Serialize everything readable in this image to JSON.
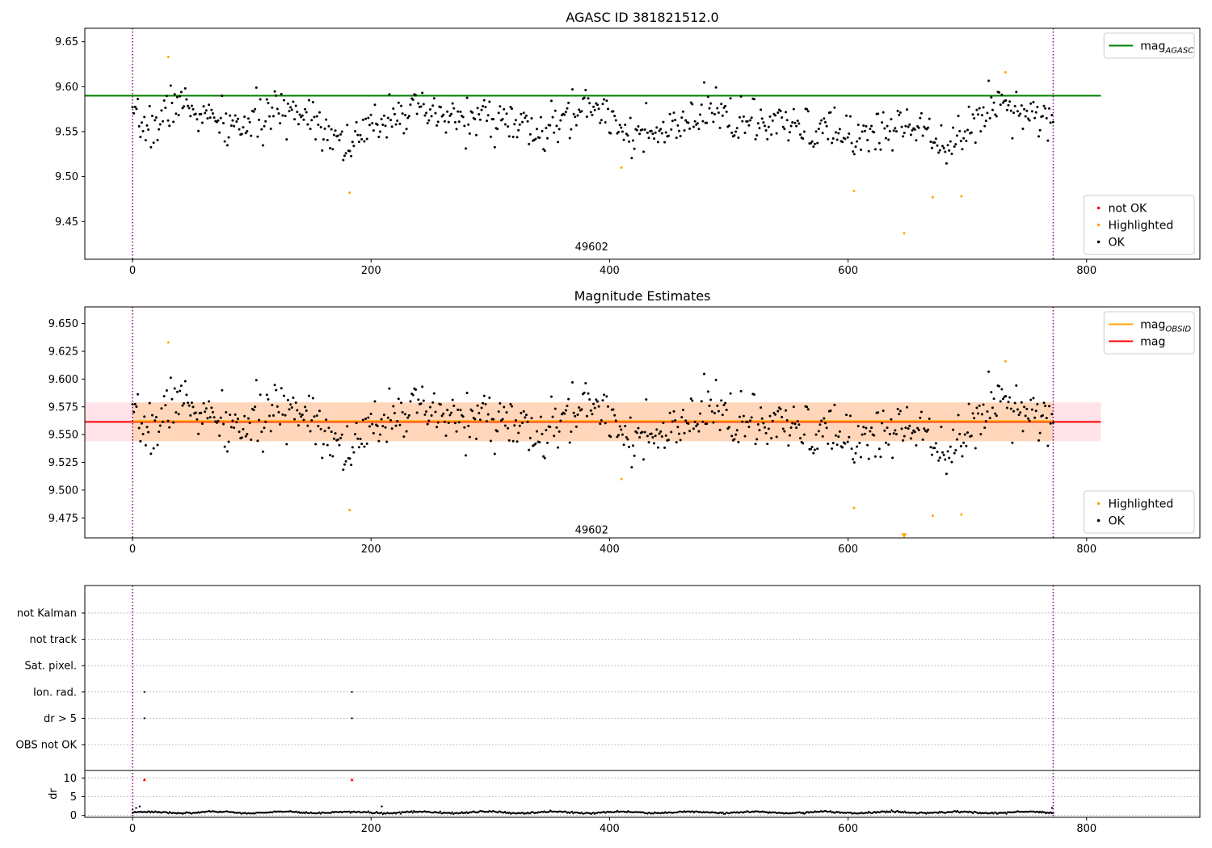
{
  "chart_data": [
    {
      "type": "scatter",
      "title": "AGASC ID 381821512.0",
      "xlim": [
        -40,
        895
      ],
      "ylim": [
        9.408,
        9.665
      ],
      "xticks": [
        0,
        200,
        400,
        600,
        800
      ],
      "yticks": [
        9.45,
        9.5,
        9.55,
        9.6,
        9.65
      ],
      "ytick_decimals": 2,
      "grid": false,
      "annotation": {
        "text": "49602",
        "x": 385,
        "y": 9.418
      },
      "vlines": [
        {
          "x": 0,
          "color": "#800080",
          "style": "dotted"
        },
        {
          "x": 772,
          "color": "#800080",
          "style": "dotted"
        }
      ],
      "hlines": [
        {
          "y": 9.59,
          "x0": -40,
          "x1": 812,
          "color": "#008000",
          "name": "mag_AGASC"
        }
      ],
      "legend_top": {
        "placement": "top-right",
        "entries": [
          {
            "label": "mag",
            "sub": "AGASC",
            "color": "#008000",
            "kind": "line"
          }
        ]
      },
      "legend_bottom": {
        "placement": "bottom-right",
        "entries": [
          {
            "label": "not OK",
            "color": "#ff0000",
            "kind": "dot"
          },
          {
            "label": "Highlighted",
            "color": "#ffa500",
            "kind": "dot"
          },
          {
            "label": "OK",
            "color": "#000000",
            "kind": "dot"
          }
        ]
      },
      "series": [
        {
          "name": "Highlighted",
          "color": "#ffa500",
          "points": [
            [
              30,
              9.633
            ],
            [
              182,
              9.482
            ],
            [
              410,
              9.51
            ],
            [
              605,
              9.484
            ],
            [
              647,
              9.437
            ],
            [
              671,
              9.477
            ],
            [
              695,
              9.478
            ],
            [
              732,
              9.616
            ]
          ]
        },
        {
          "name": "OK",
          "color": "#000000",
          "profile": [
            [
              0,
              9.56
            ],
            [
              20,
              9.555
            ],
            [
              35,
              9.585
            ],
            [
              55,
              9.57
            ],
            [
              80,
              9.555
            ],
            [
              100,
              9.56
            ],
            [
              130,
              9.575
            ],
            [
              150,
              9.57
            ],
            [
              170,
              9.545
            ],
            [
              185,
              9.535
            ],
            [
              205,
              9.56
            ],
            [
              220,
              9.575
            ],
            [
              260,
              9.565
            ],
            [
              300,
              9.565
            ],
            [
              320,
              9.56
            ],
            [
              340,
              9.545
            ],
            [
              360,
              9.56
            ],
            [
              380,
              9.58
            ],
            [
              400,
              9.57
            ],
            [
              420,
              9.545
            ],
            [
              440,
              9.545
            ],
            [
              460,
              9.555
            ],
            [
              490,
              9.575
            ],
            [
              510,
              9.56
            ],
            [
              550,
              9.555
            ],
            [
              580,
              9.55
            ],
            [
              610,
              9.545
            ],
            [
              640,
              9.555
            ],
            [
              660,
              9.56
            ],
            [
              680,
              9.54
            ],
            [
              700,
              9.545
            ],
            [
              720,
              9.585
            ],
            [
              760,
              9.57
            ],
            [
              772,
              9.565
            ]
          ],
          "count": 700,
          "spread": 0.017,
          "seed": 7
        }
      ]
    },
    {
      "type": "scatter",
      "title": "Magnitude Estimates",
      "xlim": [
        -40,
        895
      ],
      "ylim": [
        9.457,
        9.665
      ],
      "xticks": [
        0,
        200,
        400,
        600,
        800
      ],
      "yticks": [
        9.475,
        9.5,
        9.525,
        9.55,
        9.575,
        9.6,
        9.625,
        9.65
      ],
      "ytick_decimals": 3,
      "grid": false,
      "annotation": {
        "text": "49602",
        "x": 385,
        "y": 9.461
      },
      "vlines": [
        {
          "x": 0,
          "color": "#800080",
          "style": "dotted"
        },
        {
          "x": 772,
          "color": "#800080",
          "style": "dotted"
        }
      ],
      "bands": [
        {
          "x0": -40,
          "x1": 812,
          "y0": 9.544,
          "y1": 9.579,
          "color": "#ffc0cb",
          "opacity": 0.45
        },
        {
          "x0": 0,
          "x1": 772,
          "y0": 9.544,
          "y1": 9.579,
          "color": "#ffa500",
          "opacity": 0.2
        }
      ],
      "hlines": [
        {
          "y": 9.5615,
          "x0": -40,
          "x1": 812,
          "color": "#ff0000",
          "name": "mag"
        },
        {
          "y": 9.5622,
          "x0": 0,
          "x1": 772,
          "color": "#ffa500",
          "name": "mag_OBSID"
        }
      ],
      "legend_top": {
        "placement": "top-right",
        "entries": [
          {
            "label": "mag",
            "sub": "OBSID",
            "color": "#ffa500",
            "kind": "line"
          },
          {
            "label": "mag",
            "sub": "",
            "color": "#ff0000",
            "kind": "line"
          }
        ]
      },
      "legend_bottom": {
        "placement": "bottom-right",
        "entries": [
          {
            "label": "Highlighted",
            "color": "#ffa500",
            "kind": "dot"
          },
          {
            "label": "OK",
            "color": "#000000",
            "kind": "dot"
          }
        ]
      },
      "markers": [
        {
          "x": 647,
          "y": 9.459,
          "color": "#ffa500",
          "shape": "triangle-down"
        }
      ],
      "series": [
        {
          "name": "Highlighted",
          "color": "#ffa500",
          "points": [
            [
              30,
              9.633
            ],
            [
              182,
              9.482
            ],
            [
              410,
              9.51
            ],
            [
              605,
              9.484
            ],
            [
              671,
              9.477
            ],
            [
              695,
              9.478
            ],
            [
              732,
              9.616
            ]
          ]
        },
        {
          "name": "OK",
          "color": "#000000",
          "profile": [
            [
              0,
              9.56
            ],
            [
              20,
              9.555
            ],
            [
              35,
              9.585
            ],
            [
              55,
              9.57
            ],
            [
              80,
              9.555
            ],
            [
              100,
              9.56
            ],
            [
              130,
              9.575
            ],
            [
              150,
              9.57
            ],
            [
              170,
              9.545
            ],
            [
              185,
              9.535
            ],
            [
              205,
              9.56
            ],
            [
              220,
              9.575
            ],
            [
              260,
              9.565
            ],
            [
              300,
              9.565
            ],
            [
              320,
              9.56
            ],
            [
              340,
              9.545
            ],
            [
              360,
              9.56
            ],
            [
              380,
              9.58
            ],
            [
              400,
              9.57
            ],
            [
              420,
              9.545
            ],
            [
              440,
              9.545
            ],
            [
              460,
              9.555
            ],
            [
              490,
              9.575
            ],
            [
              510,
              9.56
            ],
            [
              550,
              9.555
            ],
            [
              580,
              9.55
            ],
            [
              610,
              9.545
            ],
            [
              640,
              9.555
            ],
            [
              660,
              9.56
            ],
            [
              680,
              9.54
            ],
            [
              700,
              9.545
            ],
            [
              720,
              9.585
            ],
            [
              760,
              9.57
            ],
            [
              772,
              9.565
            ]
          ],
          "count": 700,
          "spread": 0.017,
          "seed": 7
        }
      ]
    },
    {
      "type": "scatter",
      "title": "",
      "xlim": [
        -40,
        895
      ],
      "xticks": [
        0,
        200,
        400,
        600,
        800
      ],
      "flag_rows": [
        "not Kalman",
        "not track",
        "Sat. pixel.",
        "Ion. rad.",
        "dr > 5",
        "OBS not OK"
      ],
      "flag_points": [
        {
          "row": "Ion. rad.",
          "xs": [
            10,
            184
          ]
        },
        {
          "row": "dr > 5",
          "xs": [
            10,
            184
          ]
        }
      ],
      "vlines": [
        {
          "x": 0,
          "color": "#800080",
          "style": "dotted"
        },
        {
          "x": 772,
          "color": "#800080",
          "style": "dotted"
        }
      ],
      "dr": {
        "ylabel": "dr",
        "ylim": [
          -0.5,
          12
        ],
        "yticks": [
          0,
          5,
          10
        ],
        "outliers": [
          {
            "x": 10,
            "y": 9.6,
            "color": "#ff0000"
          },
          {
            "x": 184,
            "y": 9.6,
            "color": "#ff0000"
          }
        ],
        "spikes": [
          [
            0,
            1.6
          ],
          [
            3,
            2.0
          ],
          [
            6,
            2.4
          ],
          [
            209,
            2.4
          ],
          [
            771,
            2.0
          ]
        ],
        "count": 770,
        "base": 0.8,
        "amp": 0.3,
        "seed": 3
      }
    }
  ]
}
